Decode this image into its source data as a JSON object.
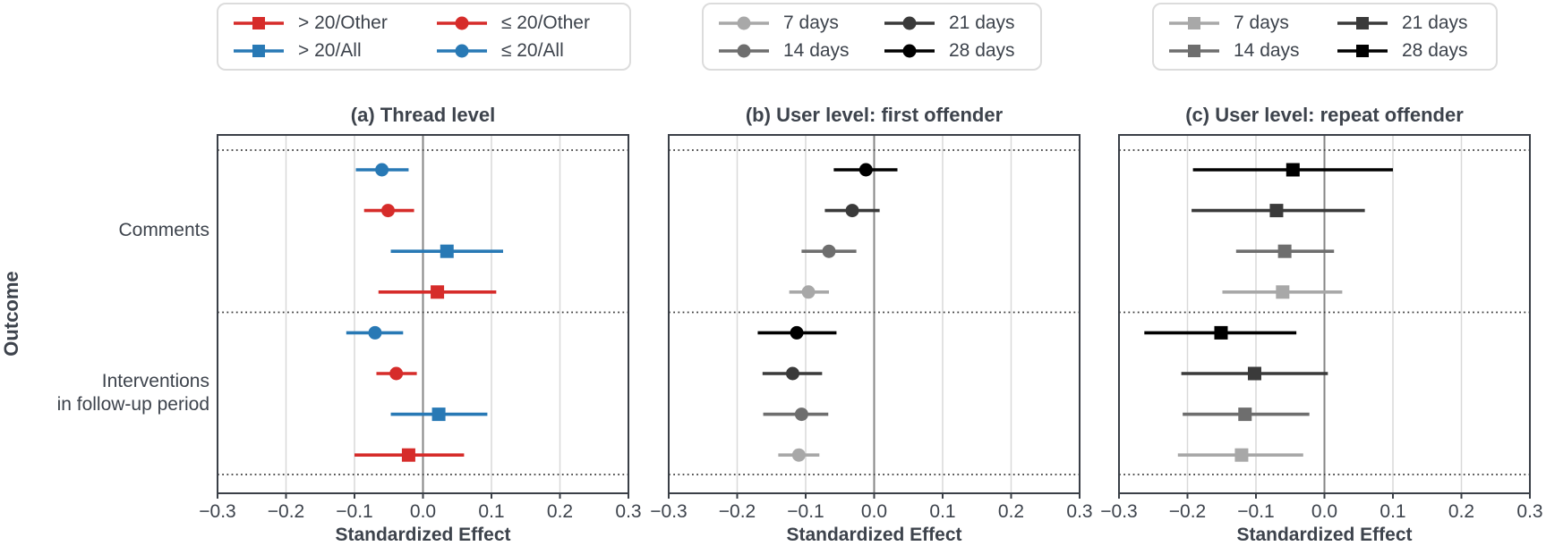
{
  "figure": {
    "ylabel": "Outcome",
    "xlabel": "Standardized Effect",
    "categories": [
      {
        "lines": [
          "Comments"
        ]
      },
      {
        "lines": [
          "Interventions",
          "in follow-up period"
        ]
      }
    ],
    "colors": {
      "red": "#d62c2a",
      "blue": "#2879b5",
      "gray_7d": "#a8a8a8",
      "gray_14d": "#6e6e6e",
      "gray_21d": "#3a3a3a",
      "black_28d": "#000000",
      "text": "#3d434c",
      "grid": "#d9d9d9",
      "zero_line": "#858585",
      "border": "#3a3f47",
      "dotted_line": "#3c3c3c"
    }
  },
  "legends": [
    {
      "name": "legend-subreddit-models",
      "entries": [
        {
          "label": "> 20/Other",
          "color": "#d62c2a",
          "shape": "square"
        },
        {
          "label": "> 20/All",
          "color": "#2879b5",
          "shape": "square"
        },
        {
          "label": "≤ 20/Other",
          "color": "#d62c2a",
          "shape": "circle"
        },
        {
          "label": "≤ 20/All",
          "color": "#2879b5",
          "shape": "circle"
        }
      ]
    },
    {
      "name": "legend-days-circles",
      "entries": [
        {
          "label": "7 days",
          "color": "#a8a8a8",
          "shape": "circle"
        },
        {
          "label": "14 days",
          "color": "#6e6e6e",
          "shape": "circle"
        },
        {
          "label": "21 days",
          "color": "#3a3a3a",
          "shape": "circle"
        },
        {
          "label": "28 days",
          "color": "#000000",
          "shape": "circle"
        }
      ]
    },
    {
      "name": "legend-days-squares",
      "entries": [
        {
          "label": "7 days",
          "color": "#a8a8a8",
          "shape": "square"
        },
        {
          "label": "14 days",
          "color": "#6e6e6e",
          "shape": "square"
        },
        {
          "label": "21 days",
          "color": "#3a3a3a",
          "shape": "square"
        },
        {
          "label": "28 days",
          "color": "#000000",
          "shape": "square"
        }
      ]
    }
  ],
  "chart_data": [
    {
      "type": "scatter",
      "subtype": "forest-plot",
      "title": "(a) Thread level",
      "xlabel": "Standardized Effect",
      "xlim": [
        -0.3,
        0.3
      ],
      "xticks": [
        -0.3,
        -0.2,
        -0.1,
        0.0,
        0.1,
        0.2,
        0.3
      ],
      "xtick_labels": [
        "−0.3",
        "−0.2",
        "−0.1",
        "0.0",
        "0.1",
        "0.2",
        "0.3"
      ],
      "grid": true,
      "groups": [
        {
          "category": "Comments",
          "points": [
            {
              "series": "≤ 20/All",
              "shape": "circle",
              "color": "#2879b5",
              "value": -0.06,
              "ci": [
                -0.098,
                -0.021
              ]
            },
            {
              "series": "≤ 20/Other",
              "shape": "circle",
              "color": "#d62c2a",
              "value": -0.051,
              "ci": [
                -0.086,
                -0.013
              ]
            },
            {
              "series": "> 20/All",
              "shape": "square",
              "color": "#2879b5",
              "value": 0.035,
              "ci": [
                -0.047,
                0.117
              ]
            },
            {
              "series": "> 20/Other",
              "shape": "square",
              "color": "#d62c2a",
              "value": 0.021,
              "ci": [
                -0.065,
                0.107
              ]
            }
          ]
        },
        {
          "category": "Interventions in follow-up period",
          "points": [
            {
              "series": "≤ 20/All",
              "shape": "circle",
              "color": "#2879b5",
              "value": -0.07,
              "ci": [
                -0.112,
                -0.029
              ]
            },
            {
              "series": "≤ 20/Other",
              "shape": "circle",
              "color": "#d62c2a",
              "value": -0.039,
              "ci": [
                -0.068,
                -0.009
              ]
            },
            {
              "series": "> 20/All",
              "shape": "square",
              "color": "#2879b5",
              "value": 0.023,
              "ci": [
                -0.047,
                0.094
              ]
            },
            {
              "series": "> 20/Other",
              "shape": "square",
              "color": "#d62c2a",
              "value": -0.021,
              "ci": [
                -0.1,
                0.06
              ]
            }
          ]
        }
      ]
    },
    {
      "type": "scatter",
      "subtype": "forest-plot",
      "title": "(b) User level: first offender",
      "xlabel": "Standardized Effect",
      "xlim": [
        -0.3,
        0.3
      ],
      "xticks": [
        -0.3,
        -0.2,
        -0.1,
        0.0,
        0.1,
        0.2,
        0.3
      ],
      "xtick_labels": [
        "−0.3",
        "−0.2",
        "−0.1",
        "0.0",
        "0.1",
        "0.2",
        "0.3"
      ],
      "grid": true,
      "groups": [
        {
          "category": "Comments",
          "points": [
            {
              "series": "28 days",
              "shape": "circle",
              "color": "#000000",
              "value": -0.012,
              "ci": [
                -0.059,
                0.034
              ]
            },
            {
              "series": "21 days",
              "shape": "circle",
              "color": "#3a3a3a",
              "value": -0.032,
              "ci": [
                -0.072,
                0.008
              ]
            },
            {
              "series": "14 days",
              "shape": "circle",
              "color": "#6e6e6e",
              "value": -0.066,
              "ci": [
                -0.106,
                -0.026
              ]
            },
            {
              "series": "7 days",
              "shape": "circle",
              "color": "#a8a8a8",
              "value": -0.096,
              "ci": [
                -0.124,
                -0.066
              ]
            }
          ]
        },
        {
          "category": "Interventions in follow-up period",
          "points": [
            {
              "series": "28 days",
              "shape": "circle",
              "color": "#000000",
              "value": -0.113,
              "ci": [
                -0.17,
                -0.055
              ]
            },
            {
              "series": "21 days",
              "shape": "circle",
              "color": "#3a3a3a",
              "value": -0.119,
              "ci": [
                -0.163,
                -0.076
              ]
            },
            {
              "series": "14 days",
              "shape": "circle",
              "color": "#6e6e6e",
              "value": -0.106,
              "ci": [
                -0.162,
                -0.067
              ]
            },
            {
              "series": "7 days",
              "shape": "circle",
              "color": "#a8a8a8",
              "value": -0.11,
              "ci": [
                -0.14,
                -0.08
              ]
            }
          ]
        }
      ]
    },
    {
      "type": "scatter",
      "subtype": "forest-plot",
      "title": "(c) User level: repeat offender",
      "xlabel": "Standardized Effect",
      "xlim": [
        -0.3,
        0.3
      ],
      "xticks": [
        -0.3,
        -0.2,
        -0.1,
        0.0,
        0.1,
        0.2,
        0.3
      ],
      "xtick_labels": [
        "−0.3",
        "−0.2",
        "−0.1",
        "0.0",
        "0.1",
        "0.2",
        "0.3"
      ],
      "grid": true,
      "groups": [
        {
          "category": "Comments",
          "points": [
            {
              "series": "28 days",
              "shape": "square",
              "color": "#000000",
              "value": -0.046,
              "ci": [
                -0.192,
                0.1
              ]
            },
            {
              "series": "21 days",
              "shape": "square",
              "color": "#3a3a3a",
              "value": -0.07,
              "ci": [
                -0.194,
                0.059
              ]
            },
            {
              "series": "14 days",
              "shape": "square",
              "color": "#6e6e6e",
              "value": -0.058,
              "ci": [
                -0.129,
                0.014
              ]
            },
            {
              "series": "7 days",
              "shape": "square",
              "color": "#a8a8a8",
              "value": -0.061,
              "ci": [
                -0.149,
                0.026
              ]
            }
          ]
        },
        {
          "category": "Interventions in follow-up period",
          "points": [
            {
              "series": "28 days",
              "shape": "square",
              "color": "#000000",
              "value": -0.151,
              "ci": [
                -0.263,
                -0.041
              ]
            },
            {
              "series": "21 days",
              "shape": "square",
              "color": "#3a3a3a",
              "value": -0.102,
              "ci": [
                -0.209,
                0.005
              ]
            },
            {
              "series": "14 days",
              "shape": "square",
              "color": "#6e6e6e",
              "value": -0.116,
              "ci": [
                -0.207,
                -0.022
              ]
            },
            {
              "series": "7 days",
              "shape": "square",
              "color": "#a8a8a8",
              "value": -0.121,
              "ci": [
                -0.214,
                -0.031
              ]
            }
          ]
        }
      ]
    }
  ]
}
